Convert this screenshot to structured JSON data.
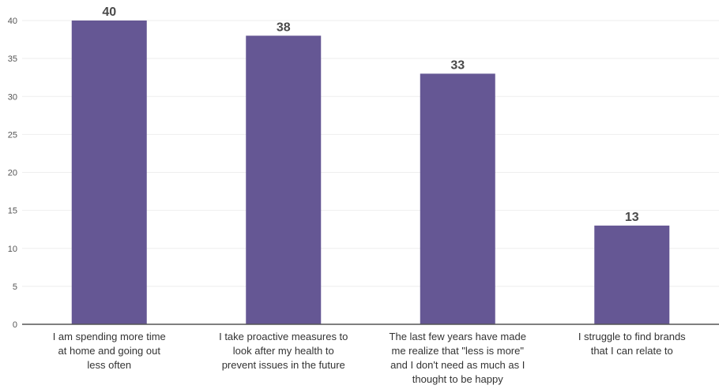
{
  "chart_data": {
    "type": "bar",
    "categories": [
      "I am spending more time at home and going out less often",
      "I take proactive measures to look after my health to prevent issues in the future",
      "The last few years have made me realize that \"less is more\" and I don't need as much as I thought to be happy",
      "I struggle to find brands that I can relate to"
    ],
    "category_lines": [
      [
        "I am spending more time",
        "at home and going out",
        "less often"
      ],
      [
        "I take proactive measures to",
        "look after my health to",
        "prevent issues in the future"
      ],
      [
        "The last few years have made",
        "me realize that \"less is more\"",
        "and I don't need as much as I",
        "thought to be happy"
      ],
      [
        "I struggle to find brands",
        "that I can relate to"
      ]
    ],
    "values": [
      40,
      38,
      33,
      13
    ],
    "yticks": [
      0,
      5,
      10,
      15,
      20,
      25,
      30,
      35,
      40
    ],
    "ylim": [
      0,
      40
    ],
    "bar_color": "#655794",
    "grid": true,
    "title": "",
    "xlabel": "",
    "ylabel": ""
  }
}
